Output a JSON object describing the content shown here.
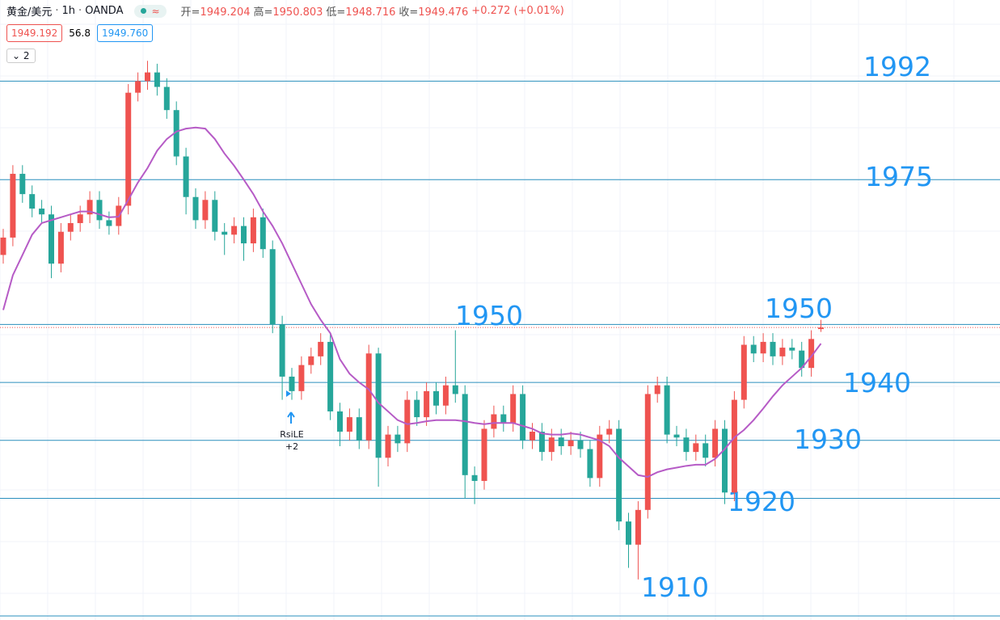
{
  "header": {
    "symbol": "黄金/美元",
    "interval": "1h",
    "source": "OANDA",
    "ohlc_labels": [
      "开=",
      "高=",
      "低=",
      "收="
    ],
    "change": "+0.272 (+0.01%)",
    "bid": "1949.192",
    "spread": "56.8",
    "ask": "1949.760",
    "indicators": "2"
  },
  "chart_data": {
    "type": "candlestick",
    "ylim": [
      1899,
      2006
    ],
    "up_color": "#ef5350",
    "down_color": "#26a69a",
    "ma_color": "#b65bc6",
    "level_color": "#2a8fbd",
    "label_color": "#2196f3",
    "open": [
      1962,
      1965,
      1976,
      1972.5,
      1970,
      1969,
      1960.5,
      1966,
      1967.5,
      1969,
      1971.5,
      1968,
      1967,
      1970.5,
      1990,
      1992,
      1993.5,
      1991,
      1987,
      1979,
      1972,
      1968,
      1971.5,
      1966,
      1965.5,
      1967,
      1964,
      1968.5,
      1963,
      1950,
      1941,
      1938.5,
      1943,
      1944.5,
      1947,
      1935,
      1931.5,
      1934,
      1930,
      1945,
      1927,
      1931,
      1929.5,
      1937,
      1934,
      1938.5,
      1936,
      1939.5,
      1938,
      1924,
      1923,
      1932,
      1934.5,
      1933,
      1938,
      1930,
      1931.5,
      1928,
      1930.5,
      1929,
      1930,
      1928.5,
      1923.5,
      1931,
      1932,
      1916,
      1912,
      1918,
      1938,
      1939.5,
      1931,
      1930.5,
      1928,
      1929.5,
      1927,
      1932,
      1921,
      1937,
      1946.5,
      1945,
      1947,
      1944.5,
      1946,
      1945.5,
      1942.5,
      1949.204
    ],
    "high": [
      1966.5,
      1977.5,
      1977.5,
      1974,
      1971.5,
      1970.5,
      1967.5,
      1969,
      1970.5,
      1973,
      1973,
      1969.5,
      1972,
      1991.5,
      1993.5,
      1995.5,
      1995,
      1992.5,
      1988.5,
      1980.5,
      1973.5,
      1973,
      1973,
      1967.5,
      1968.5,
      1968.5,
      1970,
      1970,
      1964.5,
      1951.5,
      1942.5,
      1944.5,
      1946,
      1948.5,
      1948.5,
      1936.5,
      1935.5,
      1935.5,
      1946.5,
      1946,
      1932.5,
      1932.5,
      1938.5,
      1938.5,
      1940,
      1940,
      1941,
      1949,
      1939.5,
      1925.5,
      1933.5,
      1936,
      1936,
      1939.5,
      1939.5,
      1933,
      1933,
      1932,
      1932,
      1931.5,
      1931.5,
      1930,
      1932.5,
      1933.5,
      1933.5,
      1917.5,
      1919.5,
      1939.5,
      1941,
      1941,
      1932.5,
      1932,
      1931,
      1931,
      1933.5,
      1933.5,
      1938.5,
      1948,
      1948,
      1948.5,
      1948.5,
      1947.5,
      1947.5,
      1947,
      1949,
      1950.803
    ],
    "low": [
      1960.5,
      1963.5,
      1971,
      1968.5,
      1967.5,
      1958,
      1959,
      1964.5,
      1966,
      1967.5,
      1966.5,
      1965.5,
      1965.5,
      1969,
      1988.5,
      1990.5,
      1989.5,
      1985.5,
      1977.5,
      1969,
      1966.5,
      1966.5,
      1964.5,
      1962,
      1964,
      1961,
      1962.5,
      1961.5,
      1948.5,
      1937,
      1937,
      1937,
      1941.5,
      1943,
      1933.5,
      1929,
      1930,
      1928.5,
      1928.5,
      1922,
      1925.5,
      1928,
      1928,
      1932.5,
      1932.5,
      1934.5,
      1934.5,
      1936.5,
      1920,
      1919,
      1921.5,
      1930.5,
      1931.5,
      1931.5,
      1928.5,
      1928.5,
      1926.5,
      1926.5,
      1927.5,
      1927.5,
      1927,
      1922,
      1922,
      1929.5,
      1914.5,
      1908,
      1906,
      1916.5,
      1936.5,
      1929.5,
      1929,
      1926.5,
      1926.5,
      1925.5,
      1925.5,
      1919,
      1919.5,
      1935.5,
      1943.5,
      1943.5,
      1943,
      1943,
      1944,
      1941,
      1941,
      1948.716
    ],
    "close": [
      1965,
      1976,
      1972.5,
      1970,
      1969,
      1960.5,
      1966,
      1967.5,
      1969,
      1971.5,
      1968,
      1967,
      1970.5,
      1990,
      1992,
      1993.5,
      1991,
      1987,
      1979,
      1972,
      1968,
      1971.5,
      1966,
      1965.5,
      1967,
      1964,
      1968.5,
      1963,
      1950,
      1941,
      1938.5,
      1943,
      1944.5,
      1947,
      1935,
      1931.5,
      1934,
      1930,
      1945,
      1927,
      1931,
      1929.5,
      1937,
      1934,
      1938.5,
      1936,
      1939.5,
      1938,
      1924,
      1923,
      1932,
      1934.5,
      1933,
      1938,
      1930,
      1931.5,
      1928,
      1930.5,
      1929,
      1930,
      1928.5,
      1923.5,
      1931,
      1932,
      1916,
      1912,
      1918,
      1938,
      1939.5,
      1931,
      1930.5,
      1928,
      1929.5,
      1927,
      1932,
      1921,
      1937,
      1946.5,
      1945,
      1947,
      1944.5,
      1946,
      1945.5,
      1942.5,
      1947.5,
      1949.476
    ],
    "ma": [
      1952.5,
      1958.5,
      1962,
      1965.5,
      1967.5,
      1968,
      1968.5,
      1969,
      1969.5,
      1969.5,
      1969,
      1968.5,
      1968.6,
      1971.5,
      1974.5,
      1977,
      1980,
      1982,
      1983.3,
      1983.8,
      1984,
      1983.8,
      1982,
      1979.5,
      1977.4,
      1975,
      1972.5,
      1969.5,
      1967,
      1964,
      1960.5,
      1957,
      1953.5,
      1950.8,
      1948.5,
      1944,
      1941.5,
      1940,
      1938.8,
      1936.5,
      1935,
      1933.5,
      1932.8,
      1933,
      1933.3,
      1933.5,
      1933.5,
      1933.5,
      1933.3,
      1933,
      1932.8,
      1933,
      1933,
      1933,
      1932.5,
      1932,
      1931.2,
      1931,
      1931,
      1931.2,
      1931,
      1930.5,
      1930,
      1929,
      1927,
      1925.5,
      1924,
      1923.7,
      1924.5,
      1925,
      1925.3,
      1925.6,
      1925.8,
      1925.8,
      1926.8,
      1928.5,
      1930.5,
      1931.8,
      1933.5,
      1935.5,
      1937.6,
      1939.5,
      1941,
      1942.5,
      1944.5,
      1946.7
    ],
    "levels": [
      1992,
      1975,
      1950,
      1940,
      1930,
      1920
    ],
    "price_labels": [
      1950,
      1910
    ],
    "signal": {
      "name": "RsiLE",
      "label": "+2"
    }
  }
}
